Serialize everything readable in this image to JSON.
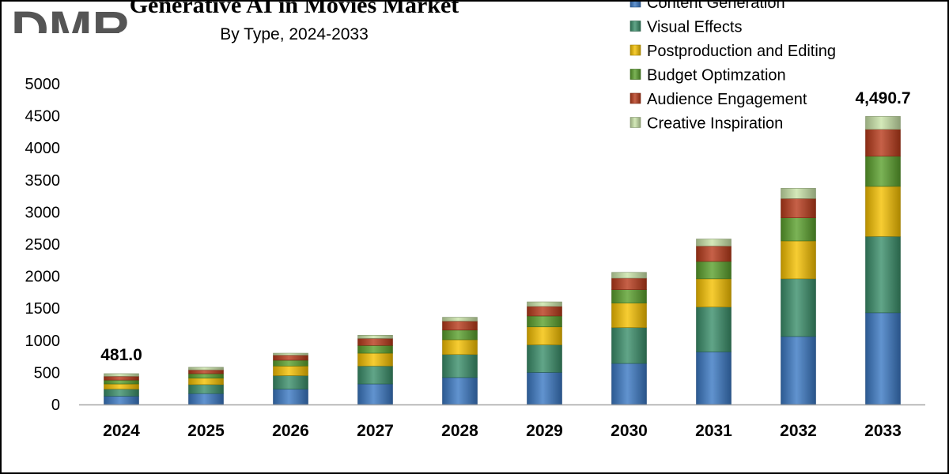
{
  "title": "Generative AI in Movies Market",
  "subtitle": "By Type, 2024-2033",
  "chart_data": {
    "type": "bar",
    "stacked": true,
    "categories": [
      "2024",
      "2025",
      "2026",
      "2027",
      "2028",
      "2029",
      "2030",
      "2031",
      "2032",
      "2033"
    ],
    "ylim": [
      0,
      5000
    ],
    "yticks": [
      0,
      500,
      1000,
      1500,
      2000,
      2500,
      3000,
      3500,
      4000,
      4500,
      5000
    ],
    "legend_position": "top-right",
    "series": [
      {
        "name": "Content Generation",
        "color": "#3a78c3",
        "values": [
          130,
          170,
          240,
          320,
          420,
          500,
          640,
          820,
          1060,
          1430
        ]
      },
      {
        "name": "Visual Effects",
        "color": "#3a8f6a",
        "values": [
          110,
          140,
          210,
          280,
          360,
          430,
          560,
          700,
          900,
          1190
        ]
      },
      {
        "name": "Postproduction and Editing",
        "color": "#f5c000",
        "values": [
          80,
          100,
          150,
          200,
          230,
          280,
          380,
          440,
          590,
          780
        ]
      },
      {
        "name": "Budget Optimzation",
        "color": "#5aa02c",
        "values": [
          60,
          70,
          90,
          120,
          150,
          170,
          210,
          270,
          360,
          470
        ]
      },
      {
        "name": "Audience Engagement",
        "color": "#b83a1a",
        "values": [
          60,
          60,
          80,
          110,
          140,
          150,
          180,
          240,
          300,
          420
        ]
      },
      {
        "name": "Creative Inspiration",
        "color": "#c9e3a8",
        "values": [
          41,
          40,
          30,
          50,
          60,
          70,
          90,
          110,
          160,
          200.7
        ]
      }
    ],
    "annotations": [
      {
        "category": "2024",
        "text": "481.0"
      },
      {
        "category": "2033",
        "text": "4,490.7"
      }
    ]
  },
  "logo": {
    "text": "DMR",
    "color": "#555555"
  }
}
